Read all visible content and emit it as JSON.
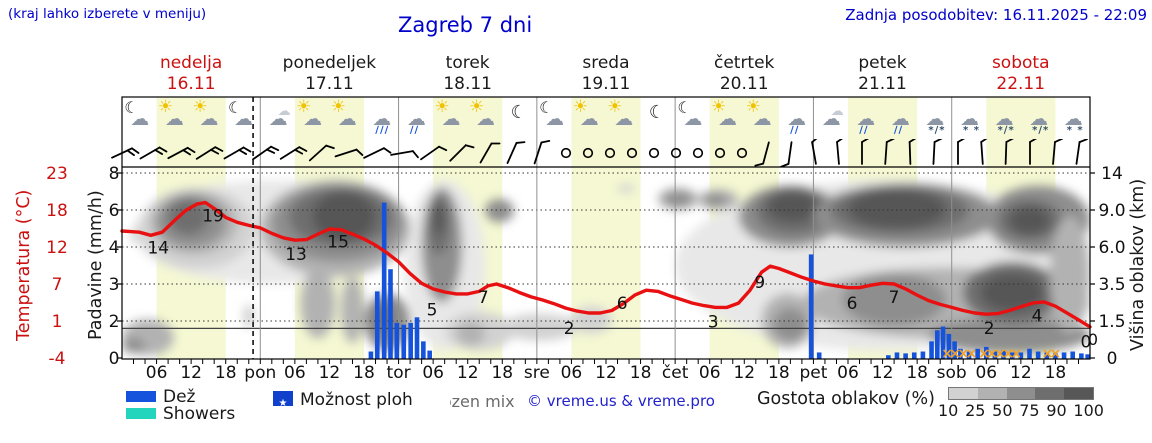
{
  "header": {
    "hint": "(kraj lahko izberete v meniju)",
    "title": "Zagreb 7 dni",
    "updated": "Zadnja posodobitev: 16.11.2025 - 22:09"
  },
  "days": [
    {
      "name": "nedelja",
      "date": "16.11",
      "weekend": true
    },
    {
      "name": "ponedeljek",
      "date": "17.11",
      "weekend": false
    },
    {
      "name": "torek",
      "date": "18.11",
      "weekend": false
    },
    {
      "name": "sreda",
      "date": "19.11",
      "weekend": false
    },
    {
      "name": "četrtek",
      "date": "20.11",
      "weekend": false
    },
    {
      "name": "petek",
      "date": "21.11",
      "weekend": false
    },
    {
      "name": "sobota",
      "date": "22.11",
      "weekend": true
    }
  ],
  "axes": {
    "temp_label": "Temperatura (°C)",
    "temp_ticks": [
      "23",
      "18",
      "12",
      "7",
      "1",
      "-4"
    ],
    "precip_label": "Padavine (mm/h)",
    "precip_ticks": [
      "8",
      "6",
      "4",
      "3",
      "2",
      "0"
    ],
    "cloud_label": "Višina oblakov (km)",
    "cloud_ticks": [
      "14",
      "9.0",
      "6.0",
      "3.5",
      "1.5",
      "0"
    ],
    "x_labels": [
      "06",
      "12",
      "18",
      "pon",
      "06",
      "12",
      "18",
      "tor",
      "06",
      "12",
      "18",
      "sre",
      "06",
      "12",
      "18",
      "čet",
      "06",
      "12",
      "18",
      "pet",
      "06",
      "12",
      "18",
      "sob",
      "06",
      "12",
      "18"
    ],
    "end_temp_label": "0"
  },
  "legend": {
    "rain": "Dež",
    "showers": "Showers",
    "chance_of_showers": "Možnost ploh",
    "frozen_mix": "frozen mix",
    "copyright": "© vreme.us & vreme.pro",
    "cloud_density_label": "Gostota oblakov (%)",
    "density_ticks": [
      "10",
      "25",
      "50",
      "75",
      "90",
      "100"
    ]
  },
  "glyphs": {
    "star": "★",
    "sun": "☀",
    "cloud": "☁",
    "moon": "☾",
    "cross": "×",
    "rain_marks": "∕∕∕",
    "drizzle_marks": "∕∕",
    "snow_marks": "* *",
    "sleet_marks": "*∕*"
  },
  "icons": [
    "moon-cloud",
    "sun-cloud",
    "sun-cloud",
    "moon-cloud",
    "cloud",
    "sun-cloud",
    "sun-cloud",
    "cloud-rain",
    "cloud-drizzle",
    "sun-cloud",
    "sun-cloud",
    "moon",
    "moon-cloud",
    "sun-cloud",
    "sun-cloud",
    "moon",
    "moon-cloud",
    "sun-cloud",
    "sun-cloud",
    "cloud-drizzle",
    "cloud",
    "cloud-drizzle",
    "cloud-drizzle",
    "cloud-sleet",
    "cloud-snow",
    "cloud-sleet",
    "cloud-sleet",
    "cloud-snow"
  ],
  "wind": [
    [
      122,
      "b",
      65,
      2
    ],
    [
      150,
      "b",
      60,
      2
    ],
    [
      178,
      "b",
      62,
      2
    ],
    [
      206,
      "b",
      58,
      2
    ],
    [
      234,
      "b",
      60,
      2
    ],
    [
      262,
      "b",
      55,
      2
    ],
    [
      290,
      "b",
      58,
      2
    ],
    [
      318,
      "b",
      48,
      1
    ],
    [
      346,
      "b",
      72,
      1
    ],
    [
      374,
      "b",
      64,
      1
    ],
    [
      402,
      "b",
      80,
      1
    ],
    [
      430,
      "b",
      55,
      1
    ],
    [
      458,
      "b",
      45,
      1
    ],
    [
      486,
      "b",
      30,
      1
    ],
    [
      512,
      "b",
      24,
      1
    ],
    [
      538,
      "b",
      18,
      1
    ],
    [
      566,
      "c"
    ],
    [
      588,
      "c"
    ],
    [
      610,
      "c"
    ],
    [
      632,
      "c"
    ],
    [
      654,
      "c"
    ],
    [
      676,
      "c"
    ],
    [
      698,
      "c"
    ],
    [
      720,
      "c"
    ],
    [
      742,
      "c"
    ],
    [
      766,
      "b",
      195,
      1
    ],
    [
      790,
      "b",
      188,
      1
    ],
    [
      814,
      "b",
      350,
      1
    ],
    [
      838,
      "b",
      355,
      1
    ],
    [
      862,
      "b",
      0,
      1
    ],
    [
      886,
      "b",
      4,
      1
    ],
    [
      910,
      "b",
      358,
      1
    ],
    [
      934,
      "b",
      3,
      1
    ],
    [
      958,
      "b",
      0,
      1
    ],
    [
      982,
      "b",
      356,
      1
    ],
    [
      1006,
      "b",
      2,
      1
    ],
    [
      1030,
      "b",
      0,
      1
    ],
    [
      1054,
      "b",
      5,
      1
    ],
    [
      1078,
      "b",
      8,
      1
    ]
  ],
  "colors": {
    "accent_blue": "#0000cc",
    "red": "#cc1111",
    "temp_line": "#e81010",
    "rain_bar": "#1553dc",
    "showers": "#23d5bd",
    "day_band": "#f5f8d2",
    "frozen_mix": "#f0a028",
    "density_scale": [
      "#e8e8e8",
      "#d2d2d2",
      "#b2b2b2",
      "#8e8e8e",
      "#6e6e6e",
      "#575757"
    ]
  },
  "chart_data": {
    "type": "meteogram (line + bar + cloud contours)",
    "title": "Zagreb 7 dni",
    "x_unit": "hours since 16.11.2025 00:00, labels every 6 h",
    "x_range": [
      0,
      168
    ],
    "now_hour": 22.75,
    "day_band_hours": [
      6,
      18
    ],
    "freezing_line_c": 0,
    "temp_axis_ticks_c": [
      23,
      18,
      12,
      7,
      1,
      -4
    ],
    "precip_axis_ticks_mm_h": [
      8,
      6,
      4,
      3,
      2,
      0
    ],
    "cloud_axis_ticks_km": [
      14,
      9.0,
      6.0,
      3.5,
      1.5,
      0
    ],
    "temperature_c": [
      [
        0,
        14.6
      ],
      [
        3,
        14.4
      ],
      [
        5,
        13.9
      ],
      [
        7,
        14.4
      ],
      [
        9,
        16.2
      ],
      [
        11,
        17.9
      ],
      [
        13,
        18.8
      ],
      [
        14.5,
        19
      ],
      [
        16,
        18.2
      ],
      [
        18,
        16.8
      ],
      [
        20,
        16
      ],
      [
        22,
        15.5
      ],
      [
        24,
        15.1
      ],
      [
        26,
        14.2
      ],
      [
        28,
        13.5
      ],
      [
        30,
        13.1
      ],
      [
        32,
        13.2
      ],
      [
        34,
        14.1
      ],
      [
        36,
        14.9
      ],
      [
        38,
        14.8
      ],
      [
        40,
        14.1
      ],
      [
        42,
        13.3
      ],
      [
        44,
        12.3
      ],
      [
        46,
        11.2
      ],
      [
        48,
        10
      ],
      [
        50,
        8.4
      ],
      [
        52,
        7.1
      ],
      [
        54,
        6.2
      ],
      [
        56,
        5.7
      ],
      [
        58,
        5.4
      ],
      [
        60,
        5.4
      ],
      [
        62,
        5.8
      ],
      [
        63.5,
        6.7
      ],
      [
        65,
        7
      ],
      [
        67,
        6.4
      ],
      [
        69,
        5.6
      ],
      [
        71,
        4.9
      ],
      [
        73,
        4.4
      ],
      [
        75,
        3.8
      ],
      [
        77,
        3.1
      ],
      [
        79,
        2.6
      ],
      [
        81,
        2.3
      ],
      [
        83,
        2.3
      ],
      [
        85,
        2.7
      ],
      [
        87,
        3.8
      ],
      [
        89,
        5.2
      ],
      [
        91,
        6
      ],
      [
        93,
        5.8
      ],
      [
        95,
        5.1
      ],
      [
        97,
        4.5
      ],
      [
        99,
        3.9
      ],
      [
        101,
        3.5
      ],
      [
        103,
        3.2
      ],
      [
        105,
        3.2
      ],
      [
        107,
        3.9
      ],
      [
        109,
        6
      ],
      [
        111,
        8.6
      ],
      [
        112.5,
        9.4
      ],
      [
        114,
        9.1
      ],
      [
        116,
        8.5
      ],
      [
        118,
        7.9
      ],
      [
        120,
        7.4
      ],
      [
        122,
        7
      ],
      [
        124,
        6.7
      ],
      [
        126,
        6.4
      ],
      [
        128,
        6.4
      ],
      [
        130,
        6.8
      ],
      [
        132,
        7.1
      ],
      [
        134,
        7
      ],
      [
        136,
        6.2
      ],
      [
        138,
        5.2
      ],
      [
        140,
        4.3
      ],
      [
        142,
        3.7
      ],
      [
        144,
        3.2
      ],
      [
        146,
        2.7
      ],
      [
        148,
        2.3
      ],
      [
        150,
        2.1
      ],
      [
        152,
        2.2
      ],
      [
        154,
        2.7
      ],
      [
        156,
        3.3
      ],
      [
        158,
        3.9
      ],
      [
        160,
        4.1
      ],
      [
        162,
        3.4
      ],
      [
        164,
        2.3
      ],
      [
        166,
        1.2
      ],
      [
        168,
        0.2
      ]
    ],
    "temp_point_labels": [
      [
        6.3,
        14
      ],
      [
        15.8,
        19
      ],
      [
        30.2,
        13
      ],
      [
        37.5,
        15
      ],
      [
        53.8,
        5
      ],
      [
        62.7,
        7
      ],
      [
        77.6,
        2
      ],
      [
        86.8,
        6
      ],
      [
        102.6,
        3
      ],
      [
        110.7,
        9
      ],
      [
        126.7,
        6
      ],
      [
        134,
        7
      ],
      [
        150.5,
        2
      ],
      [
        158.8,
        4
      ],
      [
        167.3,
        0
      ]
    ],
    "precip_rain_mm_h": [
      [
        43.2,
        0.35
      ],
      [
        44.3,
        2.8
      ],
      [
        45.5,
        6.4
      ],
      [
        46.6,
        3.4
      ],
      [
        47.7,
        1.9
      ],
      [
        48.9,
        1.8
      ],
      [
        50.1,
        1.9
      ],
      [
        51.2,
        2.1
      ],
      [
        52.3,
        0.9
      ],
      [
        53.4,
        0.4
      ],
      [
        119.6,
        3.8
      ],
      [
        121,
        0.3
      ],
      [
        133,
        0.15
      ],
      [
        134.5,
        0.3
      ],
      [
        136,
        0.25
      ],
      [
        137.5,
        0.3
      ],
      [
        139,
        0.35
      ],
      [
        140.5,
        0.9
      ],
      [
        141.5,
        1.5
      ],
      [
        142.5,
        1.7
      ],
      [
        143.5,
        1.3
      ],
      [
        144.5,
        0.9
      ],
      [
        145.5,
        0.5
      ],
      [
        147,
        0.35
      ],
      [
        148.5,
        0.5
      ],
      [
        150,
        0.6
      ],
      [
        151.5,
        0.35
      ],
      [
        153,
        0.4
      ],
      [
        154.5,
        0.3
      ],
      [
        156,
        0.3
      ],
      [
        157.5,
        0.5
      ],
      [
        159,
        0.35
      ],
      [
        160.5,
        0.3
      ],
      [
        162,
        0.25
      ],
      [
        163.5,
        0.3
      ],
      [
        165,
        0.35
      ],
      [
        166.5,
        0.25
      ],
      [
        167.6,
        0.2
      ]
    ],
    "frozen_mix_hours": [
      143.2,
      144.6,
      146,
      147.4,
      149.6,
      151,
      152.4,
      153.8,
      155.2,
      160.6,
      162
    ],
    "cloud_cover_regions_h0_h1_km0_km1_densityIdx": [
      [
        2,
        50,
        3.5,
        13,
        0
      ],
      [
        49,
        63,
        0.3,
        13,
        0
      ],
      [
        96,
        168,
        0.3,
        13,
        0
      ],
      [
        0,
        9,
        0.1,
        1.6,
        2
      ],
      [
        0,
        4,
        0.2,
        0.8,
        3
      ],
      [
        1.5,
        3,
        6.3,
        7.6,
        1
      ],
      [
        3,
        23,
        4.5,
        12,
        1
      ],
      [
        5,
        20,
        5.5,
        11.5,
        2
      ],
      [
        6,
        18,
        6,
        11,
        3
      ],
      [
        8,
        15,
        7,
        10.5,
        4
      ],
      [
        21,
        23,
        1.2,
        2.4,
        1
      ],
      [
        24,
        50,
        4,
        13,
        2
      ],
      [
        26,
        49,
        5,
        12.5,
        3
      ],
      [
        29,
        47,
        6,
        12,
        4
      ],
      [
        33,
        44,
        6.5,
        11.5,
        5
      ],
      [
        31,
        37,
        0.8,
        4.5,
        2
      ],
      [
        38,
        42,
        0.6,
        4,
        2
      ],
      [
        42,
        50,
        0.3,
        3,
        3
      ],
      [
        44,
        47,
        1,
        2.5,
        4
      ],
      [
        52,
        59,
        2.5,
        12,
        3
      ],
      [
        53,
        57,
        5.5,
        11,
        4
      ],
      [
        54,
        56,
        7,
        10,
        5
      ],
      [
        56,
        68,
        0.3,
        2,
        1
      ],
      [
        58,
        63,
        0.5,
        1.5,
        2
      ],
      [
        63,
        68,
        8,
        10.5,
        3
      ],
      [
        66,
        79,
        0.7,
        1.9,
        1
      ],
      [
        78,
        85,
        1,
        2.3,
        1
      ],
      [
        86,
        89,
        11.5,
        12.3,
        1
      ],
      [
        93,
        100,
        9,
        12,
        2
      ],
      [
        94,
        99,
        9.5,
        11.5,
        3
      ],
      [
        100,
        107,
        9,
        11.8,
        2
      ],
      [
        101,
        105,
        9.5,
        11.2,
        3
      ],
      [
        107,
        125,
        6,
        12.3,
        3
      ],
      [
        110,
        123,
        7,
        12,
        4
      ],
      [
        112,
        121,
        8,
        11.5,
        5
      ],
      [
        111,
        120,
        0.4,
        3,
        2
      ],
      [
        113,
        119,
        0.7,
        2.2,
        3
      ],
      [
        118,
        168,
        0.8,
        4.6,
        2
      ],
      [
        125,
        143,
        1.3,
        4.2,
        3
      ],
      [
        120,
        152,
        6,
        12.6,
        3
      ],
      [
        123,
        147,
        7,
        12.2,
        4
      ],
      [
        126,
        143,
        7.5,
        11.8,
        5
      ],
      [
        150,
        168,
        5.5,
        12.3,
        3
      ],
      [
        152,
        163,
        6.5,
        10.5,
        4
      ],
      [
        154,
        161,
        7,
        9.5,
        5
      ],
      [
        140,
        168,
        0.2,
        1.7,
        3
      ],
      [
        146,
        163,
        1.4,
        5,
        4
      ],
      [
        149,
        160,
        2,
        4.2,
        5
      ],
      [
        161,
        168,
        1,
        8.5,
        2
      ]
    ]
  }
}
